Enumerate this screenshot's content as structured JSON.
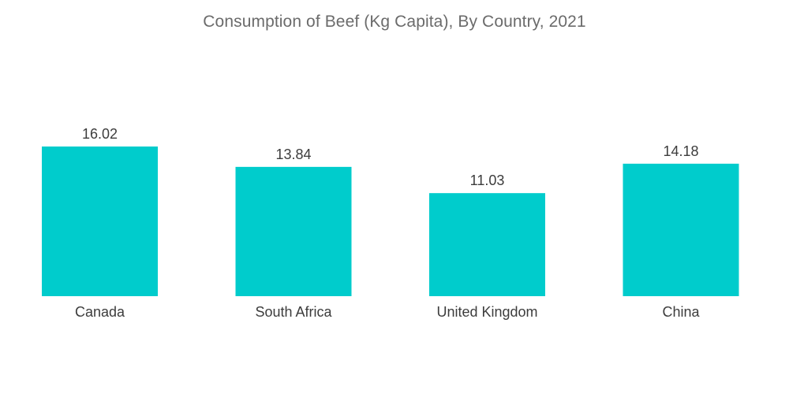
{
  "chart_data": {
    "type": "bar",
    "title": "Consumption of Beef (Kg Capita), By Country, 2021",
    "categories": [
      "Canada",
      "South Africa",
      "United Kingdom",
      "China"
    ],
    "values": [
      16.02,
      13.84,
      11.03,
      14.18
    ],
    "value_labels": [
      "16.02",
      "13.84",
      "11.03",
      "14.18"
    ],
    "xlabel": "",
    "ylabel": "",
    "ylim": [
      0,
      16.02
    ],
    "grid": false,
    "legend": "none",
    "bar_color": "#00cccc"
  }
}
